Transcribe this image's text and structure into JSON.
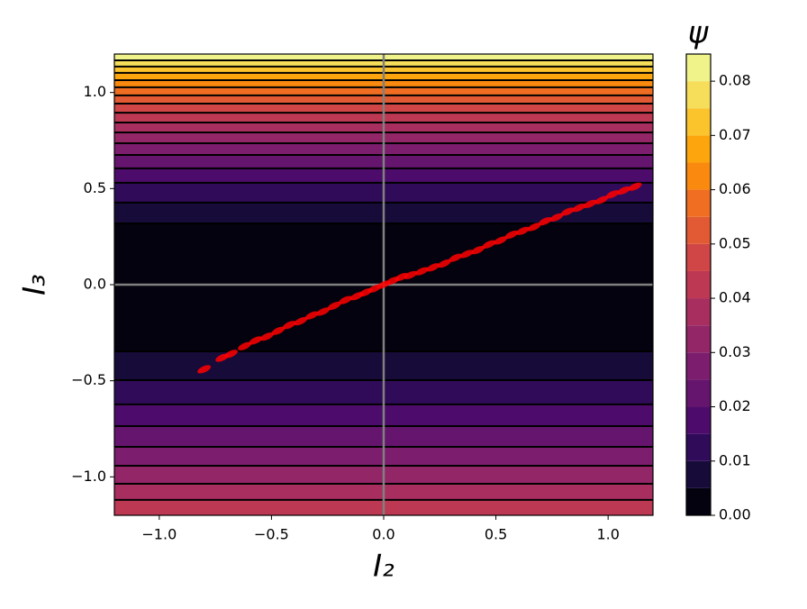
{
  "chart_data": {
    "type": "contour",
    "xlabel": "I₂",
    "ylabel": "I₃",
    "xlim": [
      -1.2,
      1.2
    ],
    "ylim": [
      -1.2,
      1.2
    ],
    "xticks": [
      {
        "value": -1.0,
        "label": "−1.0"
      },
      {
        "value": -0.5,
        "label": "−0.5"
      },
      {
        "value": 0.0,
        "label": "0.0"
      },
      {
        "value": 0.5,
        "label": "0.5"
      },
      {
        "value": 1.0,
        "label": "1.0"
      }
    ],
    "yticks": [
      {
        "value": -1.0,
        "label": "−1.0"
      },
      {
        "value": -0.5,
        "label": "−0.5"
      },
      {
        "value": 0.0,
        "label": "0.0"
      },
      {
        "value": 0.5,
        "label": "0.5"
      },
      {
        "value": 1.0,
        "label": "1.0"
      }
    ],
    "contour_lines": [
      {
        "level": 0.005,
        "y": 0.319
      },
      {
        "level": 0.01,
        "y": 0.427
      },
      {
        "level": 0.015,
        "y": 0.53
      },
      {
        "level": 0.02,
        "y": 0.605
      },
      {
        "level": 0.025,
        "y": 0.675
      },
      {
        "level": 0.03,
        "y": 0.736
      },
      {
        "level": 0.035,
        "y": 0.792
      },
      {
        "level": 0.04,
        "y": 0.844
      },
      {
        "level": 0.045,
        "y": 0.895
      },
      {
        "level": 0.05,
        "y": 0.942
      },
      {
        "level": 0.055,
        "y": 0.985
      },
      {
        "level": 0.06,
        "y": 1.027
      },
      {
        "level": 0.065,
        "y": 1.064
      },
      {
        "level": 0.07,
        "y": 1.102
      },
      {
        "level": 0.075,
        "y": 1.135
      },
      {
        "level": 0.08,
        "y": 1.167
      },
      {
        "level": 0.005,
        "y": -0.347
      },
      {
        "level": 0.01,
        "y": -0.497
      },
      {
        "level": 0.015,
        "y": -0.623
      },
      {
        "level": 0.02,
        "y": -0.736
      },
      {
        "level": 0.025,
        "y": -0.844
      },
      {
        "level": 0.03,
        "y": -0.942
      },
      {
        "level": 0.035,
        "y": -1.036
      },
      {
        "level": 0.04,
        "y": -1.12
      }
    ],
    "points": {
      "color": "#ff0000",
      "x": [
        -0.8,
        -0.72,
        -0.68,
        -0.62,
        -0.57,
        -0.52,
        -0.47,
        -0.42,
        -0.37,
        -0.32,
        -0.27,
        -0.22,
        -0.17,
        -0.12,
        -0.08,
        -0.04,
        0.0,
        0.04,
        0.08,
        0.12,
        0.17,
        0.22,
        0.27,
        0.32,
        0.37,
        0.42,
        0.47,
        0.52,
        0.57,
        0.62,
        0.67,
        0.72,
        0.77,
        0.82,
        0.87,
        0.92,
        0.97,
        1.02,
        1.07,
        1.12
      ],
      "y": [
        -0.44,
        -0.38,
        -0.36,
        -0.32,
        -0.29,
        -0.27,
        -0.24,
        -0.21,
        -0.19,
        -0.16,
        -0.14,
        -0.11,
        -0.08,
        -0.06,
        -0.04,
        -0.02,
        0.0,
        0.02,
        0.04,
        0.05,
        0.07,
        0.09,
        0.11,
        0.14,
        0.16,
        0.18,
        0.21,
        0.23,
        0.26,
        0.28,
        0.3,
        0.33,
        0.35,
        0.38,
        0.4,
        0.42,
        0.44,
        0.47,
        0.49,
        0.51
      ]
    },
    "colorbar": {
      "label": "ψ",
      "levels": [
        0,
        0.005,
        0.01,
        0.015,
        0.02,
        0.025,
        0.03,
        0.035,
        0.04,
        0.045,
        0.05,
        0.055,
        0.06,
        0.065,
        0.07,
        0.075,
        0.08,
        0.085
      ],
      "colors": [
        "#03020e",
        "#160b39",
        "#300b5a",
        "#4d0c6b",
        "#65156e",
        "#7c1d6d",
        "#932667",
        "#a82e5f",
        "#bd3853",
        "#d04545",
        "#e25a33",
        "#ef6e22",
        "#f98a0f",
        "#fca50c",
        "#fbc32c",
        "#f6de5a",
        "#f0f38a"
      ],
      "ticks": [
        {
          "value": 0,
          "label": "0.00"
        },
        {
          "value": 0.01,
          "label": "0.01"
        },
        {
          "value": 0.02,
          "label": "0.02"
        },
        {
          "value": 0.03,
          "label": "0.03"
        },
        {
          "value": 0.04,
          "label": "0.04"
        },
        {
          "value": 0.05,
          "label": "0.05"
        },
        {
          "value": 0.06,
          "label": "0.06"
        },
        {
          "value": 0.07,
          "label": "0.07"
        },
        {
          "value": 0.08,
          "label": "0.08"
        }
      ]
    },
    "zero_lines": true
  }
}
